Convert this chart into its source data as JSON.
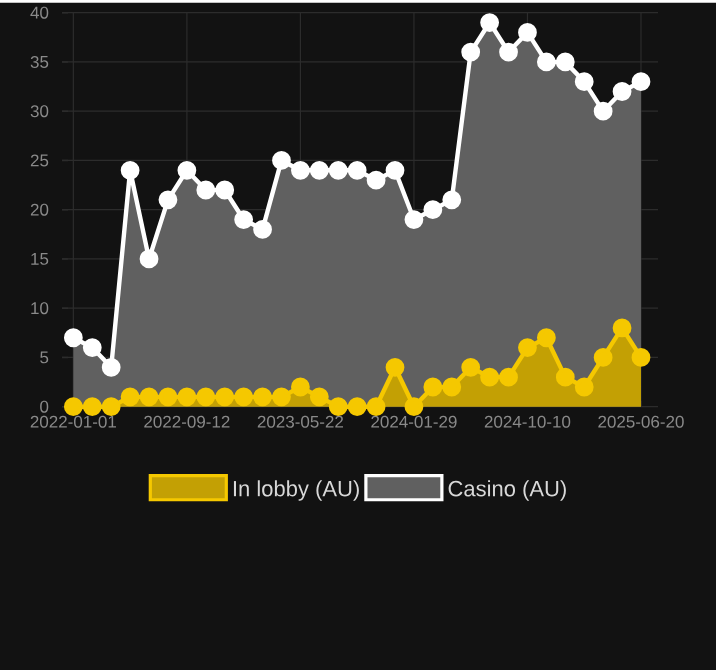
{
  "chart_data": {
    "type": "area",
    "categories": [
      "2022-01-01",
      null,
      null,
      null,
      null,
      null,
      "2022-09-12",
      null,
      null,
      null,
      null,
      null,
      "2023-05-22",
      null,
      null,
      null,
      null,
      null,
      "2024-01-29",
      null,
      null,
      null,
      null,
      null,
      "2024-10-10",
      null,
      null,
      null,
      null,
      null,
      "2025-06-20"
    ],
    "series": [
      {
        "name": "In lobby (AU)",
        "color": "#f5c800",
        "values": [
          0,
          0,
          0,
          1,
          1,
          1,
          1,
          1,
          1,
          1,
          1,
          1,
          2,
          1,
          0,
          0,
          0,
          4,
          0,
          2,
          2,
          4,
          3,
          3,
          6,
          7,
          3,
          2,
          5,
          8,
          5
        ]
      },
      {
        "name": "Casino (AU)",
        "color": "#ffffff",
        "values": [
          7,
          6,
          4,
          24,
          15,
          21,
          24,
          22,
          22,
          19,
          18,
          25,
          24,
          24,
          24,
          24,
          23,
          24,
          19,
          20,
          21,
          36,
          39,
          36,
          38,
          35,
          35,
          33,
          30,
          32,
          33
        ]
      }
    ],
    "ylim": [
      0,
      40
    ],
    "yticks": [
      0,
      5,
      10,
      15,
      20,
      25,
      30,
      35,
      40
    ],
    "grid": true,
    "legend": "bottom",
    "marker": "circle"
  }
}
